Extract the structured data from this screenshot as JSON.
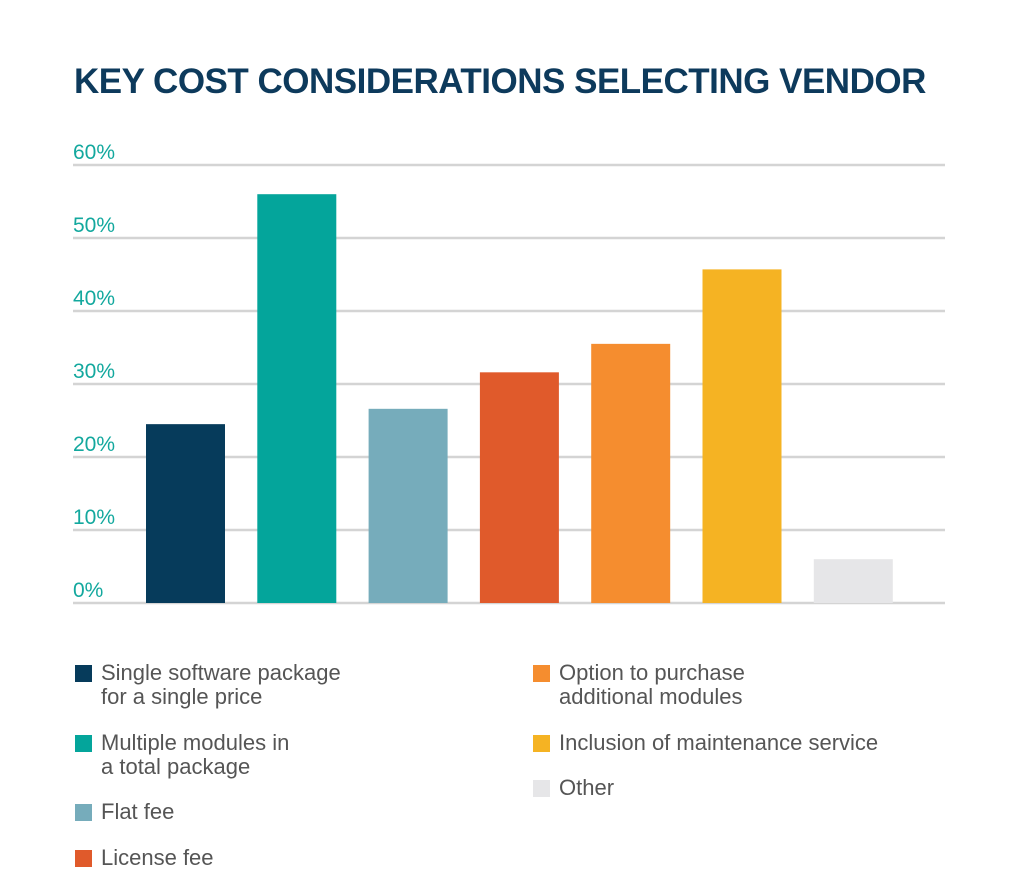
{
  "chart_data": {
    "type": "bar",
    "title": "KEY COST CONSIDERATIONS SELECTING VENDOR",
    "xlabel": "",
    "ylabel": "",
    "ylim": [
      0,
      60
    ],
    "yticks": [
      "0%",
      "10%",
      "20%",
      "30%",
      "40%",
      "50%",
      "60%"
    ],
    "grid": true,
    "legend_placement": "bottom",
    "categories": [
      "Single software package\nfor a single price",
      "Multiple modules in\na total package",
      "Flat fee",
      "License fee",
      "Option to purchase\nadditional modules",
      "Inclusion of maintenance service",
      "Other"
    ],
    "values": [
      24.5,
      56,
      26.6,
      31.6,
      35.5,
      45.7,
      6
    ],
    "colors": [
      "#063b5b",
      "#04a59b",
      "#76acbb",
      "#e05a2b",
      "#f58d2f",
      "#f5b323",
      "#e6e6e8"
    ]
  }
}
